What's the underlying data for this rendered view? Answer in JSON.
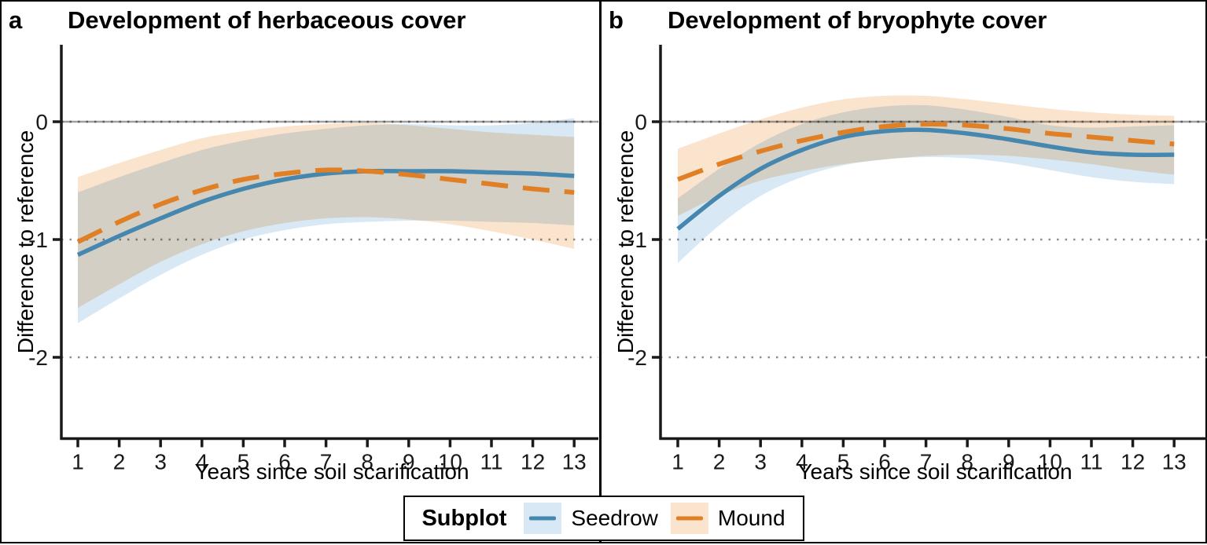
{
  "chart_data": [
    {
      "type": "line",
      "panel_label": "a",
      "title": "Development of herbaceous cover",
      "xlabel": "Years since soil scarification",
      "ylabel": "Difference to reference",
      "x": [
        1,
        2,
        3,
        4,
        5,
        6,
        7,
        8,
        9,
        10,
        11,
        12,
        13
      ],
      "x_ticks": [
        "1",
        "2",
        "3",
        "4",
        "5",
        "6",
        "7",
        "8",
        "9",
        "10",
        "11",
        "12",
        "13"
      ],
      "y_ticks": [
        {
          "value": 0,
          "label": "0"
        },
        {
          "value": -1,
          "label": "-1"
        },
        {
          "value": -2,
          "label": "-2"
        }
      ],
      "ylim": [
        -2.65,
        0.65
      ],
      "grid": "horizontal dotted lines at y ticks; solid gray reference line at 0",
      "series": [
        {
          "name": "Seedrow",
          "style": "solid",
          "color": "#4587ae",
          "fill": "#d9e8f5",
          "values": [
            -1.13,
            -0.97,
            -0.82,
            -0.68,
            -0.57,
            -0.49,
            -0.44,
            -0.42,
            -0.42,
            -0.42,
            -0.43,
            -0.44,
            -0.46
          ],
          "ci_upper": [
            -0.6,
            -0.47,
            -0.35,
            -0.24,
            -0.16,
            -0.1,
            -0.06,
            -0.03,
            -0.02,
            -0.03,
            -0.03,
            -0.01,
            0.03
          ],
          "ci_lower": [
            -1.71,
            -1.5,
            -1.3,
            -1.13,
            -1.0,
            -0.92,
            -0.87,
            -0.85,
            -0.84,
            -0.84,
            -0.85,
            -0.86,
            -0.88
          ]
        },
        {
          "name": "Mound",
          "style": "dashed",
          "color": "#e07f23",
          "fill": "#fae4cd",
          "values": [
            -1.02,
            -0.85,
            -0.7,
            -0.58,
            -0.49,
            -0.44,
            -0.41,
            -0.42,
            -0.45,
            -0.49,
            -0.53,
            -0.57,
            -0.6
          ],
          "ci_upper": [
            -0.47,
            -0.35,
            -0.24,
            -0.14,
            -0.08,
            -0.04,
            -0.02,
            -0.01,
            -0.03,
            -0.06,
            -0.09,
            -0.11,
            -0.13
          ],
          "ci_lower": [
            -1.58,
            -1.38,
            -1.19,
            -1.04,
            -0.93,
            -0.86,
            -0.82,
            -0.81,
            -0.83,
            -0.87,
            -0.93,
            -1.0,
            -1.08
          ]
        }
      ]
    },
    {
      "type": "line",
      "panel_label": "b",
      "title": "Development of bryophyte cover",
      "xlabel": "Years since soil scarification",
      "ylabel": "Difference to reference",
      "x": [
        1,
        2,
        3,
        4,
        5,
        6,
        7,
        8,
        9,
        10,
        11,
        12,
        13
      ],
      "x_ticks": [
        "1",
        "2",
        "3",
        "4",
        "5",
        "6",
        "7",
        "8",
        "9",
        "10",
        "11",
        "12",
        "13"
      ],
      "y_ticks": [
        {
          "value": 0,
          "label": "0"
        },
        {
          "value": -1,
          "label": "-1"
        },
        {
          "value": -2,
          "label": "-2"
        }
      ],
      "ylim": [
        -2.65,
        0.65
      ],
      "grid": "horizontal dotted lines at y ticks; solid gray reference line at 0",
      "series": [
        {
          "name": "Seedrow",
          "style": "solid",
          "color": "#4587ae",
          "fill": "#d9e8f5",
          "values": [
            -0.91,
            -0.63,
            -0.4,
            -0.24,
            -0.13,
            -0.08,
            -0.07,
            -0.1,
            -0.15,
            -0.21,
            -0.26,
            -0.28,
            -0.28
          ],
          "ci_upper": [
            -0.65,
            -0.4,
            -0.18,
            -0.02,
            0.08,
            0.13,
            0.14,
            0.1,
            0.04,
            -0.03,
            -0.05,
            -0.04,
            -0.03
          ],
          "ci_lower": [
            -1.2,
            -0.88,
            -0.63,
            -0.47,
            -0.37,
            -0.32,
            -0.3,
            -0.31,
            -0.35,
            -0.41,
            -0.47,
            -0.51,
            -0.53
          ]
        },
        {
          "name": "Mound",
          "style": "dashed",
          "color": "#e07f23",
          "fill": "#fae4cd",
          "values": [
            -0.49,
            -0.36,
            -0.25,
            -0.16,
            -0.09,
            -0.04,
            -0.02,
            -0.03,
            -0.06,
            -0.1,
            -0.13,
            -0.16,
            -0.19
          ],
          "ci_upper": [
            -0.23,
            -0.1,
            0.02,
            0.12,
            0.19,
            0.22,
            0.22,
            0.19,
            0.15,
            0.11,
            0.08,
            0.06,
            0.05
          ],
          "ci_lower": [
            -0.8,
            -0.63,
            -0.5,
            -0.42,
            -0.36,
            -0.32,
            -0.29,
            -0.28,
            -0.29,
            -0.32,
            -0.36,
            -0.41,
            -0.45
          ]
        }
      ]
    }
  ],
  "legend": {
    "title": "Subplot",
    "position": "bottom-center",
    "items": [
      {
        "label": "Seedrow",
        "line_color": "#4587ae",
        "fill_color": "#d9e8f5",
        "line_style": "solid"
      },
      {
        "label": "Mound",
        "line_color": "#e07f23",
        "fill_color": "#fae4cd",
        "line_style": "dashed"
      }
    ]
  },
  "colors": {
    "seedrow_line": "#4587ae",
    "seedrow_ribbon": "#d9e8f5",
    "mound_line": "#e07f23",
    "mound_ribbon": "#fae4cd",
    "grid_dotted": "#8f8f8f",
    "zero_reference_line": "#a0a0a0",
    "axis": "#1a1a1a",
    "panel_border": "#000000",
    "background": "#ffffff"
  }
}
